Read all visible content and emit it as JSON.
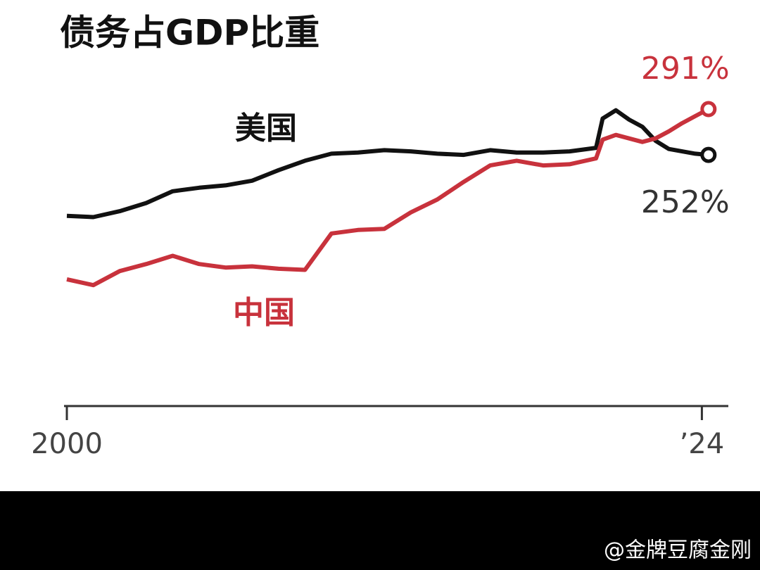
{
  "chart_data": {
    "type": "line",
    "title": "债务占GDP比重",
    "x": [
      2000,
      2001,
      2002,
      2003,
      2004,
      2005,
      2006,
      2007,
      2008,
      2009,
      2010,
      2011,
      2012,
      2013,
      2014,
      2015,
      2016,
      2017,
      2018,
      2019,
      2020,
      2020.25,
      2020.75,
      2021.25,
      2021.75,
      2022.25,
      2022.75,
      2023.25,
      2023.75,
      2024.25
    ],
    "series": [
      {
        "name": "美国",
        "color": "#111111",
        "values": [
          200,
          199,
          204,
          211,
          221,
          224,
          226,
          230,
          239,
          247,
          253,
          254,
          256,
          255,
          253,
          252,
          256,
          254,
          254,
          255,
          258,
          283,
          290,
          282,
          276,
          264,
          257,
          255,
          253,
          252
        ],
        "value_labels": [
          null,
          null,
          null,
          null,
          null,
          null,
          null,
          null,
          null,
          null,
          null,
          null,
          null,
          null,
          null,
          null,
          null,
          null,
          null,
          null,
          null,
          null,
          null,
          null,
          null,
          null,
          null,
          null,
          null,
          "252%"
        ]
      },
      {
        "name": "中国",
        "color": "#c8323c",
        "values": [
          146,
          141,
          153,
          159,
          166,
          159,
          156,
          157,
          155,
          154,
          185,
          188,
          189,
          203,
          214,
          229,
          243,
          247,
          243,
          244,
          249,
          265,
          269,
          266,
          263,
          266,
          272,
          279,
          285,
          291
        ],
        "value_labels": [
          null,
          null,
          null,
          null,
          null,
          null,
          null,
          null,
          null,
          null,
          null,
          null,
          null,
          null,
          null,
          null,
          null,
          null,
          null,
          null,
          null,
          null,
          null,
          null,
          null,
          null,
          null,
          null,
          null,
          "291%"
        ]
      }
    ],
    "xlim": [
      2000,
      2025
    ],
    "xticks": [
      2000,
      {
        "value": 2024,
        "label": "’24"
      }
    ],
    "ylim": [
      38,
      324
    ],
    "watermark": "@金牌豆腐金刚"
  }
}
